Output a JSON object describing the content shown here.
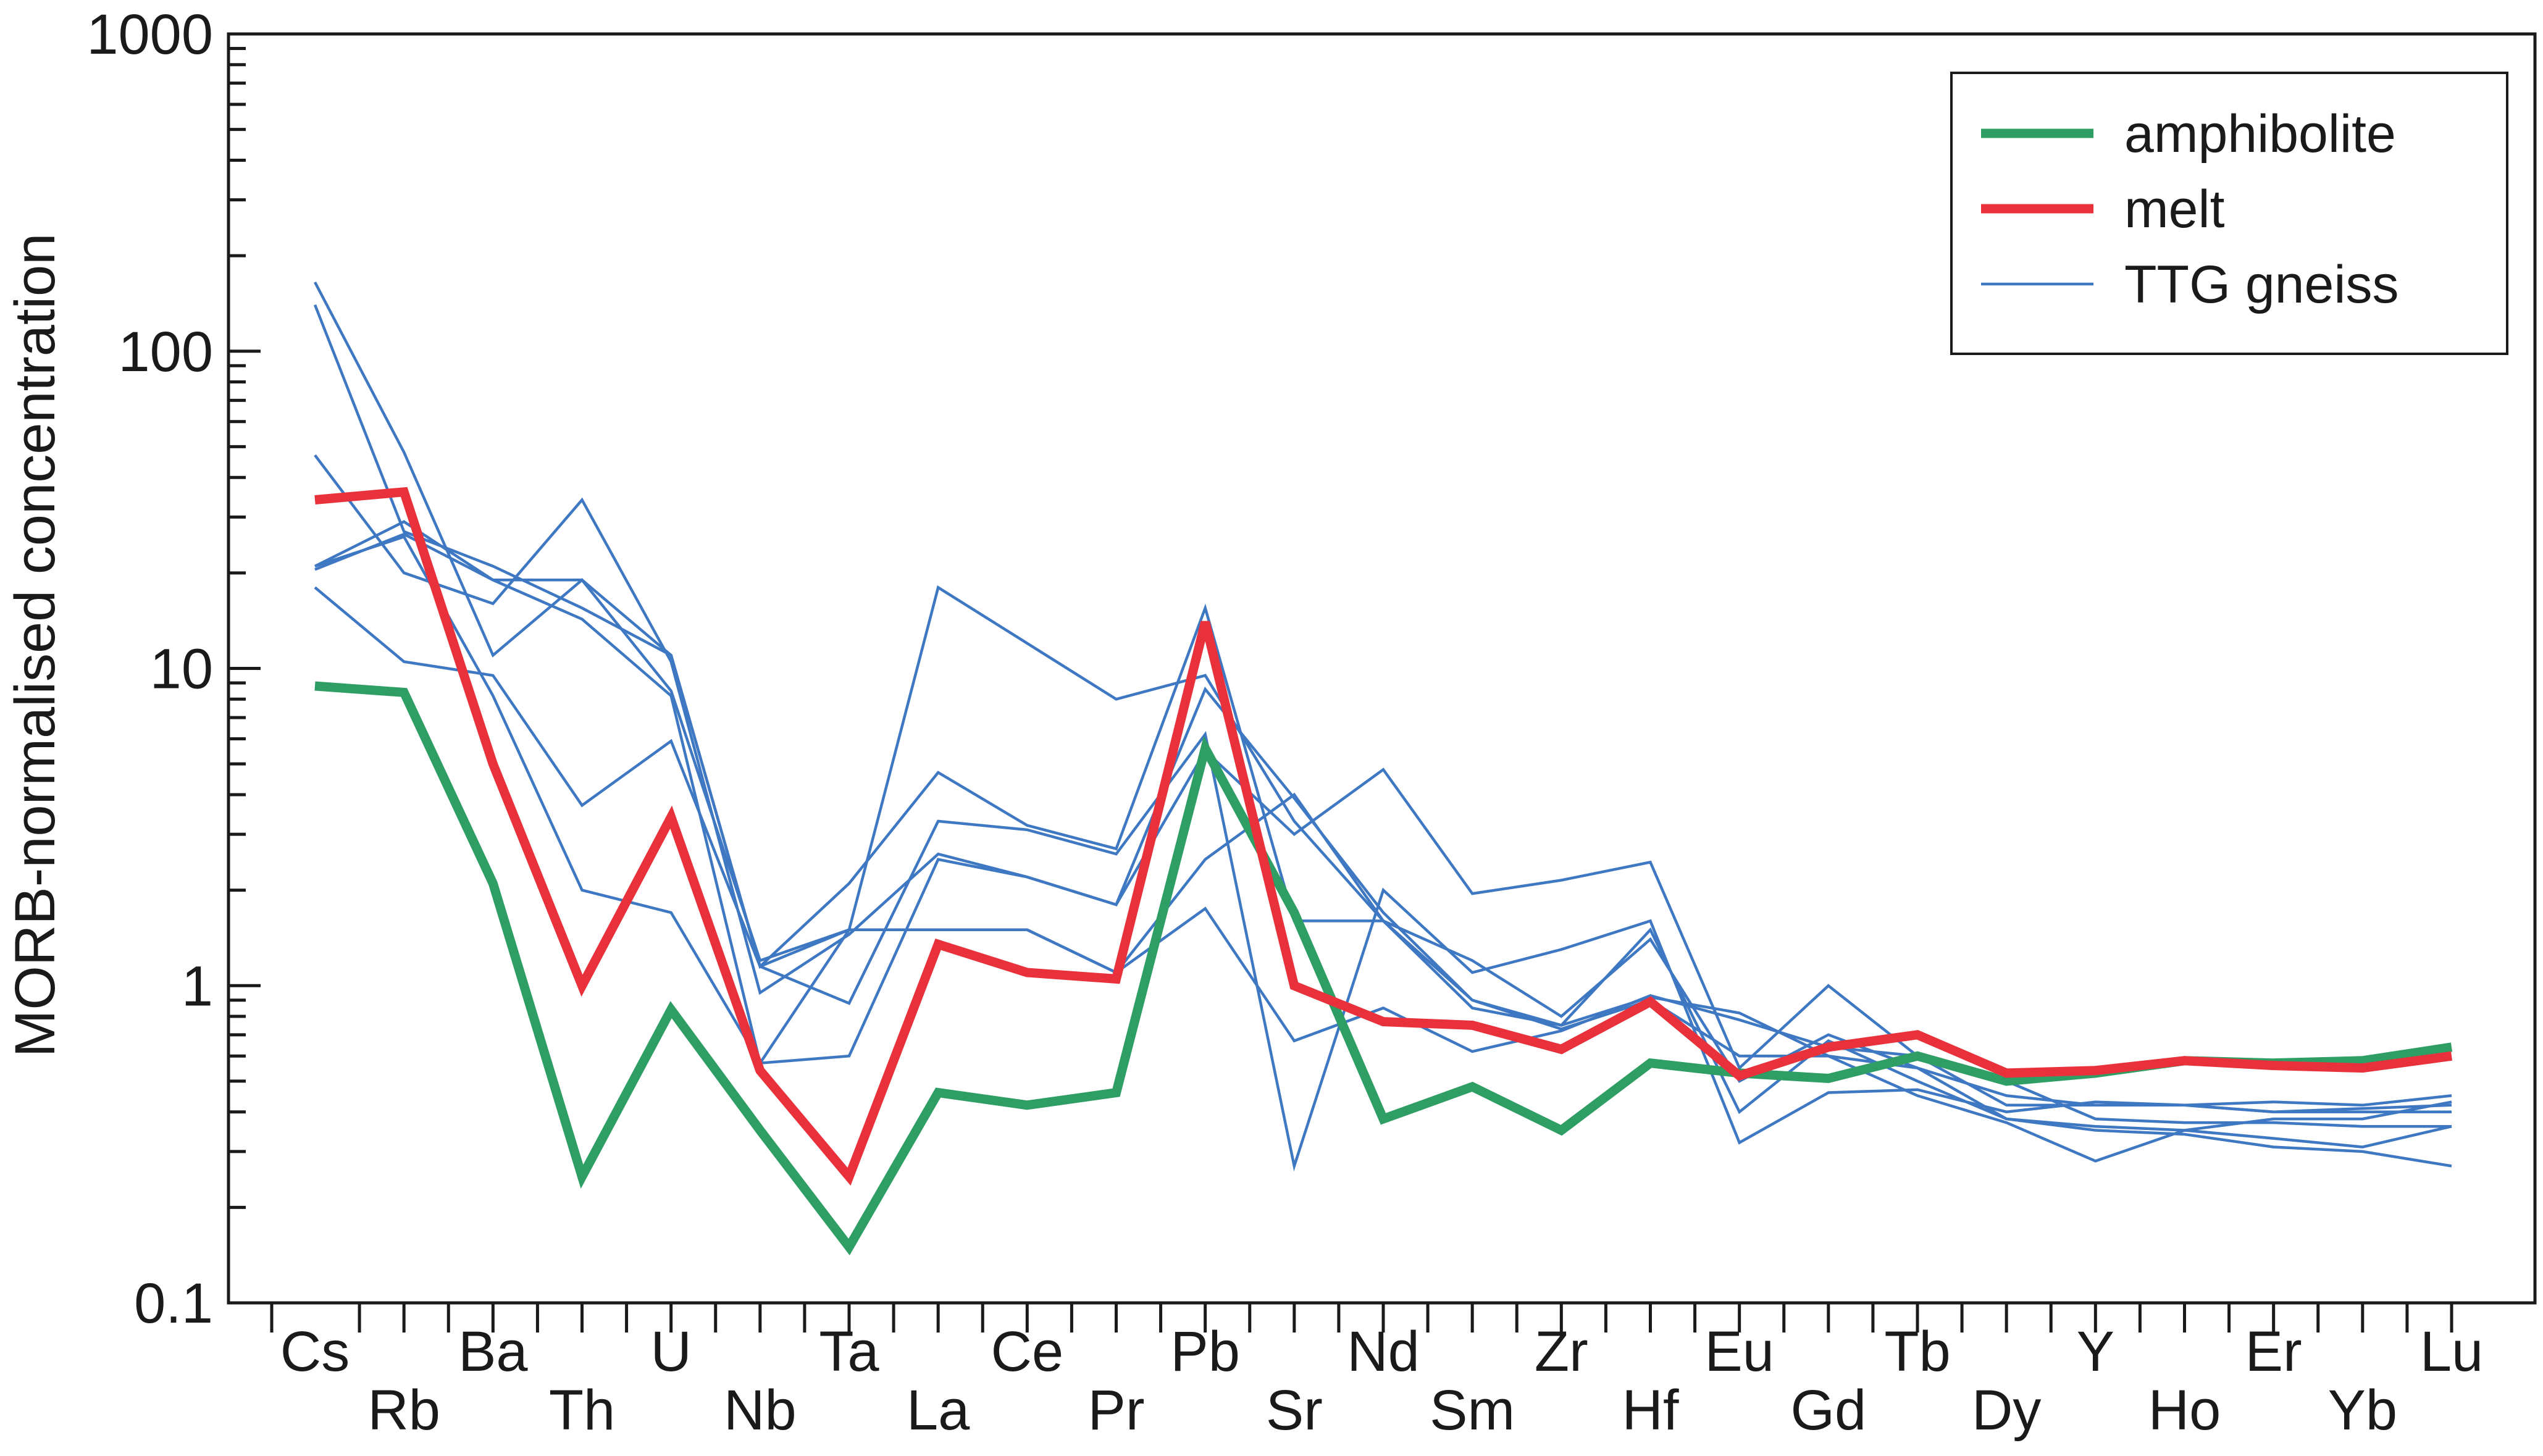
{
  "chart_data": {
    "type": "line",
    "title": "",
    "xlabel": "",
    "ylabel": "MORB-normalised concentration",
    "yscale": "log",
    "ylim": [
      0.1,
      1000
    ],
    "yticks": [
      {
        "value": 0.1,
        "label": "0.1"
      },
      {
        "value": 1,
        "label": "1"
      },
      {
        "value": 10,
        "label": "10"
      },
      {
        "value": 100,
        "label": "100"
      },
      {
        "value": 1000,
        "label": "1000"
      }
    ],
    "grid": false,
    "legend_position": "top-right",
    "categories": [
      "Cs",
      "Rb",
      "Ba",
      "Th",
      "U",
      "Nb",
      "Ta",
      "La",
      "Ce",
      "Pr",
      "Pb",
      "Sr",
      "Nd",
      "Sm",
      "Zr",
      "Hf",
      "Eu",
      "Gd",
      "Tb",
      "Dy",
      "Y",
      "Ho",
      "Er",
      "Yb",
      "Lu"
    ],
    "legend": [
      {
        "label": "amphibolite",
        "color": "#2e9e64",
        "style": "thick"
      },
      {
        "label": "melt",
        "color": "#e8313a",
        "style": "thick"
      },
      {
        "label": "TTG gneiss",
        "color": "#3f78c2",
        "style": "thin"
      }
    ],
    "series": [
      {
        "name": "TTG gneiss",
        "group": "TTG gneiss",
        "color": "#3f78c2",
        "values": [
          165,
          48,
          11,
          19,
          8.5,
          1.2,
          1.5,
          18,
          12,
          8,
          9.5,
          3.3,
          1.6,
          1.2,
          0.8,
          1.4,
          0.5,
          0.7,
          0.55,
          0.45,
          0.42,
          0.42,
          0.4,
          0.4,
          0.4
        ]
      },
      {
        "name": "TTG gneiss",
        "group": "TTG gneiss",
        "color": "#3f78c2",
        "values": [
          140,
          27,
          21,
          15.5,
          11,
          1.15,
          2.1,
          4.7,
          3.2,
          2.7,
          15.5,
          1.6,
          1.6,
          0.85,
          0.75,
          0.92,
          0.82,
          0.6,
          0.55,
          0.38,
          0.36,
          0.35,
          0.33,
          0.31,
          0.36
        ]
      },
      {
        "name": "TTG gneiss",
        "group": "TTG gneiss",
        "color": "#3f78c2",
        "values": [
          47,
          20,
          16,
          34,
          10.5,
          0.95,
          1.45,
          2.6,
          2.2,
          1.8,
          8.6,
          3.9,
          1.7,
          0.9,
          0.75,
          1.5,
          0.4,
          0.67,
          0.5,
          0.38,
          0.35,
          0.34,
          0.31,
          0.3,
          0.27
        ]
      },
      {
        "name": "TTG gneiss",
        "group": "TTG gneiss",
        "color": "#3f78c2",
        "values": [
          21,
          29,
          19,
          19,
          11,
          1.15,
          1.5,
          1.5,
          1.5,
          1.1,
          2.5,
          4,
          1.6,
          0.9,
          0.73,
          0.9,
          0.6,
          0.6,
          0.45,
          0.37,
          0.28,
          0.35,
          0.38,
          0.38,
          0.43
        ]
      },
      {
        "name": "TTG gneiss",
        "group": "TTG gneiss",
        "color": "#3f78c2",
        "values": [
          18,
          10.5,
          9.5,
          3.7,
          5.9,
          1.15,
          0.88,
          3.3,
          3.1,
          2.6,
          6.2,
          0.27,
          2,
          1.1,
          1.3,
          1.6,
          0.32,
          0.46,
          0.47,
          0.4,
          0.43,
          0.42,
          0.43,
          0.42,
          0.45
        ]
      },
      {
        "name": "TTG gneiss",
        "group": "TTG gneiss",
        "color": "#3f78c2",
        "values": [
          21,
          26,
          8.2,
          2,
          1.7,
          0.57,
          0.6,
          2.5,
          2.2,
          1.8,
          5.5,
          3,
          4.8,
          1.95,
          2.15,
          2.45,
          0.55,
          1,
          0.6,
          0.5,
          0.38,
          0.37,
          0.37,
          0.36,
          0.36
        ]
      },
      {
        "name": "TTG gneiss",
        "group": "TTG gneiss",
        "color": "#3f78c2",
        "values": [
          20.5,
          26.5,
          19,
          14.3,
          8.2,
          0.57,
          1.5,
          1.5,
          1.5,
          1.1,
          1.75,
          0.67,
          0.85,
          0.62,
          0.72,
          0.93,
          0.78,
          0.64,
          0.6,
          0.42,
          0.42,
          0.42,
          0.4,
          0.41,
          0.42
        ]
      },
      {
        "name": "amphibolite",
        "group": "amphibolite",
        "color": "#2e9e64",
        "values": [
          8.8,
          8.4,
          2.1,
          0.25,
          0.84,
          0.35,
          0.15,
          0.46,
          0.42,
          0.46,
          5.6,
          1.7,
          0.38,
          0.48,
          0.35,
          0.57,
          0.53,
          0.51,
          0.6,
          0.5,
          0.53,
          0.58,
          0.57,
          0.58,
          0.64
        ]
      },
      {
        "name": "melt",
        "group": "melt",
        "color": "#e8313a",
        "values": [
          34,
          36,
          5,
          1,
          3.4,
          0.54,
          0.25,
          1.35,
          1.1,
          1.05,
          14,
          1,
          0.77,
          0.75,
          0.63,
          0.89,
          0.52,
          0.64,
          0.7,
          0.53,
          0.54,
          0.58,
          0.56,
          0.55,
          0.6
        ]
      }
    ]
  }
}
